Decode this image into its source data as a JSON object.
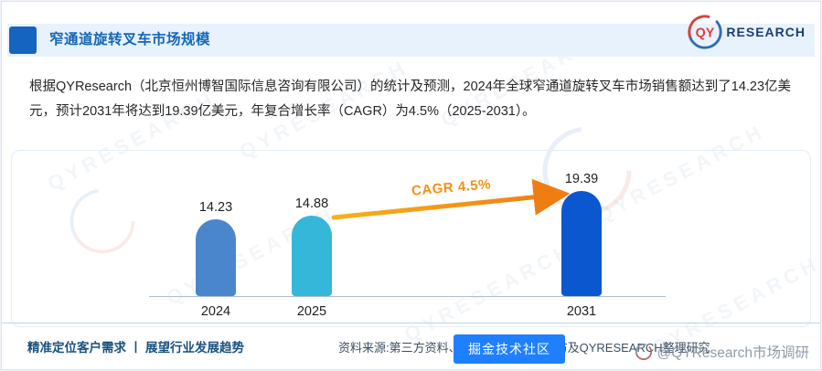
{
  "header": {
    "title": "窄通道旋转叉车市场规模",
    "logo_qy": "QY",
    "logo_text": "RESEARCH"
  },
  "intro": "根据QYResearch（北京恒州博智国际信息咨询有限公司）的统计及预测，2024年全球窄通道旋转叉车市场销售额达到了14.23亿美元，预计2031年将达到19.39亿美元，年复合增长率（CAGR）为4.5%（2025-2031）。",
  "chart_data": {
    "type": "bar",
    "title": "窄通道旋转叉车市场规模",
    "categories": [
      "2024",
      "2025",
      "2031"
    ],
    "values": [
      14.23,
      14.88,
      19.39
    ],
    "unit": "亿美元",
    "colors": [
      "#4a86cc",
      "#35b7d9",
      "#0b57d0"
    ],
    "annotation": "CAGR 4.5%",
    "ylim": [
      0,
      20
    ],
    "xlabel": "",
    "ylabel": "",
    "grid": false,
    "legend": false
  },
  "footer": {
    "tagline": "精准定位客户需求 丨 展望行业发展趋势",
    "source": "资料来源:第三方资料、新闻报道、业内采访及QYRESEARCH整理研究"
  },
  "overlays": {
    "badge_text": "掘金技术社区",
    "stamp_text": "@QYResearch市场调研"
  },
  "watermark": {
    "text": "QYRESEARCH"
  }
}
